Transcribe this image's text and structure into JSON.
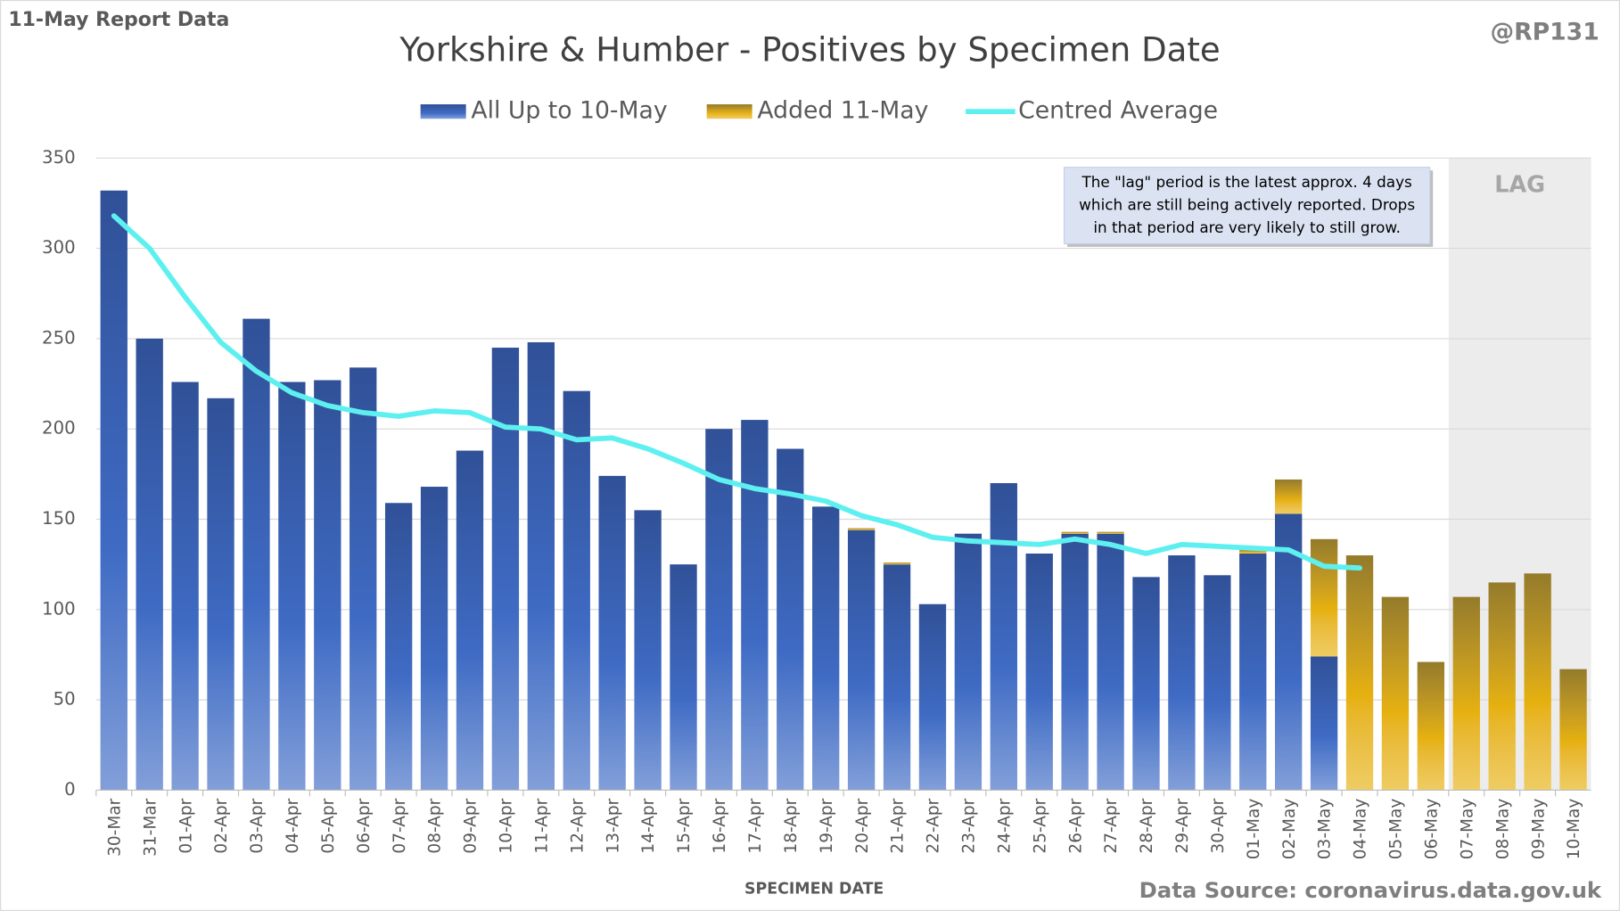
{
  "chart_data": {
    "type": "bar",
    "stacked": true,
    "title": "Yorkshire & Humber - Positives by Specimen Date",
    "corner_left": "11-May Report Data",
    "corner_right": "@RP131",
    "source": "Data Source: coronavirus.data.gov.uk",
    "x_label": "SPECIMEN DATE",
    "lag_label": "LAG",
    "lag_start": "07-May",
    "annotation": [
      "The \"lag\" period is the latest approx. 4 days",
      "which are still being actively reported.  Drops",
      "in that period are very likely to still grow."
    ],
    "categories": [
      "30-Mar",
      "31-Mar",
      "01-Apr",
      "02-Apr",
      "03-Apr",
      "04-Apr",
      "05-Apr",
      "06-Apr",
      "07-Apr",
      "08-Apr",
      "09-Apr",
      "10-Apr",
      "11-Apr",
      "12-Apr",
      "13-Apr",
      "14-Apr",
      "15-Apr",
      "16-Apr",
      "17-Apr",
      "18-Apr",
      "19-Apr",
      "20-Apr",
      "21-Apr",
      "22-Apr",
      "23-Apr",
      "24-Apr",
      "25-Apr",
      "26-Apr",
      "27-Apr",
      "28-Apr",
      "29-Apr",
      "30-Apr",
      "01-May",
      "02-May",
      "03-May",
      "04-May",
      "05-May",
      "06-May",
      "07-May",
      "08-May",
      "09-May",
      "10-May"
    ],
    "series": [
      {
        "name": "All Up to 10-May",
        "color": "#3f6bc4",
        "values": [
          332,
          250,
          226,
          217,
          261,
          226,
          227,
          234,
          159,
          168,
          188,
          245,
          248,
          221,
          174,
          155,
          125,
          200,
          205,
          189,
          157,
          144,
          125,
          103,
          142,
          170,
          131,
          142,
          142,
          118,
          130,
          119,
          131,
          153,
          74,
          0,
          0,
          0,
          0,
          0,
          0,
          0
        ]
      },
      {
        "name": "Added 11-May",
        "color": "#e6b10e",
        "values": [
          0,
          0,
          0,
          0,
          0,
          0,
          0,
          0,
          0,
          0,
          0,
          0,
          0,
          0,
          0,
          0,
          0,
          0,
          0,
          0,
          0,
          1,
          1,
          0,
          0,
          0,
          0,
          1,
          1,
          0,
          0,
          0,
          2,
          19,
          65,
          130,
          107,
          71,
          107,
          115,
          120,
          67
        ]
      },
      {
        "name": "Centred Average",
        "type": "line",
        "color": "#5ef0f0",
        "values": [
          318,
          300,
          273,
          248,
          232,
          220,
          213,
          209,
          207,
          210,
          209,
          201,
          200,
          194,
          195,
          189,
          181,
          172,
          167,
          164,
          160,
          152,
          147,
          140,
          138,
          137,
          136,
          139,
          136,
          131,
          136,
          135,
          134,
          133,
          124,
          123,
          null,
          null,
          null,
          null,
          null,
          null
        ]
      }
    ],
    "ylim": [
      0,
      350
    ],
    "yticks": [
      0,
      50,
      100,
      150,
      200,
      250,
      300,
      350
    ],
    "grid": true,
    "legend": "top"
  }
}
